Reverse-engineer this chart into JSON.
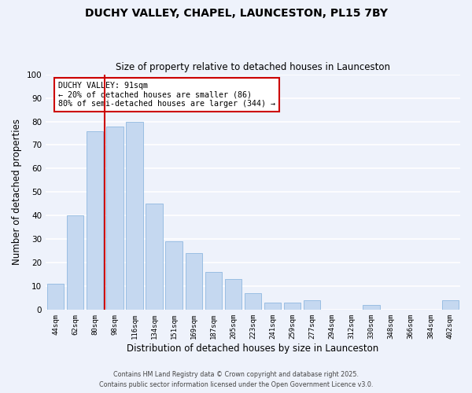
{
  "title": "DUCHY VALLEY, CHAPEL, LAUNCESTON, PL15 7BY",
  "subtitle": "Size of property relative to detached houses in Launceston",
  "xlabel": "Distribution of detached houses by size in Launceston",
  "ylabel": "Number of detached properties",
  "bar_color": "#c5d8f0",
  "bar_edge_color": "#8fb8e0",
  "background_color": "#eef2fb",
  "grid_color": "#ffffff",
  "categories": [
    "44sqm",
    "62sqm",
    "80sqm",
    "98sqm",
    "116sqm",
    "134sqm",
    "151sqm",
    "169sqm",
    "187sqm",
    "205sqm",
    "223sqm",
    "241sqm",
    "259sqm",
    "277sqm",
    "294sqm",
    "312sqm",
    "330sqm",
    "348sqm",
    "366sqm",
    "384sqm",
    "402sqm"
  ],
  "values": [
    11,
    40,
    76,
    78,
    80,
    45,
    29,
    24,
    16,
    13,
    7,
    3,
    3,
    4,
    0,
    0,
    2,
    0,
    0,
    0,
    4
  ],
  "ylim": [
    0,
    100
  ],
  "vline_color": "#cc0000",
  "annotation_title": "DUCHY VALLEY: 91sqm",
  "annotation_line1": "← 20% of detached houses are smaller (86)",
  "annotation_line2": "80% of semi-detached houses are larger (344) →",
  "annotation_box_color": "#cc0000",
  "footer1": "Contains HM Land Registry data © Crown copyright and database right 2025.",
  "footer2": "Contains public sector information licensed under the Open Government Licence v3.0."
}
